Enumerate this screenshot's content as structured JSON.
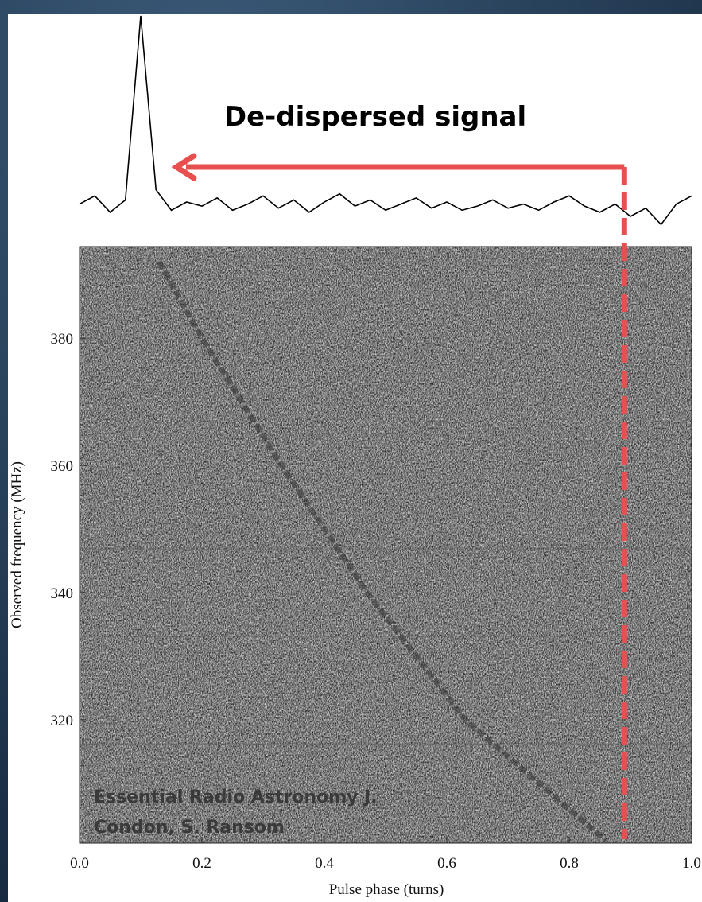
{
  "chart_data": {
    "type": "line",
    "title": "De-dispersed signal",
    "xlabel": "Pulse phase (turns)",
    "ylabel": "Observed frequency (MHz)",
    "watermark": [
      "Essential Radio Astronomy J.",
      "Condon, S. Ransom"
    ],
    "xlim": [
      0,
      1
    ],
    "xticks": [
      {
        "value": 0,
        "label": "0.0"
      },
      {
        "value": 0.2,
        "label": "0.2"
      },
      {
        "value": 0.4,
        "label": "0.4"
      },
      {
        "value": 0.6,
        "label": "0.6"
      },
      {
        "value": 0.8,
        "label": "0.8"
      },
      {
        "value": 1,
        "label": "1.0"
      }
    ],
    "ylim": [
      300.6,
      394.4
    ],
    "yticks": [
      320,
      340,
      360,
      380
    ],
    "signal_phase": 0.89,
    "annotation_color": "#e8504f",
    "profile": {
      "color": "#000000",
      "ylim": [
        -0.05,
        1.0
      ],
      "x": [
        0,
        0.025,
        0.05,
        0.075,
        0.1,
        0.125,
        0.15,
        0.175,
        0.2,
        0.225,
        0.25,
        0.275,
        0.3,
        0.325,
        0.35,
        0.375,
        0.4,
        0.425,
        0.45,
        0.475,
        0.5,
        0.525,
        0.55,
        0.575,
        0.6,
        0.625,
        0.65,
        0.675,
        0.7,
        0.725,
        0.75,
        0.775,
        0.8,
        0.825,
        0.85,
        0.875,
        0.9,
        0.925,
        0.95,
        0.975,
        1.0
      ],
      "values": [
        0.08,
        0.12,
        0.04,
        0.1,
        1.0,
        0.15,
        0.05,
        0.09,
        0.07,
        0.11,
        0.05,
        0.08,
        0.12,
        0.06,
        0.1,
        0.04,
        0.09,
        0.13,
        0.07,
        0.1,
        0.05,
        0.08,
        0.11,
        0.06,
        0.09,
        0.05,
        0.07,
        0.1,
        0.06,
        0.08,
        0.05,
        0.09,
        0.12,
        0.07,
        0.04,
        0.08,
        0.02,
        0.06,
        -0.02,
        0.08,
        0.12
      ]
    },
    "track": {
      "color": "#333333",
      "x": [
        0.13,
        0.2,
        0.33,
        0.47,
        0.63,
        0.86
      ],
      "values": [
        392,
        380,
        360,
        340,
        320,
        301
      ]
    }
  }
}
